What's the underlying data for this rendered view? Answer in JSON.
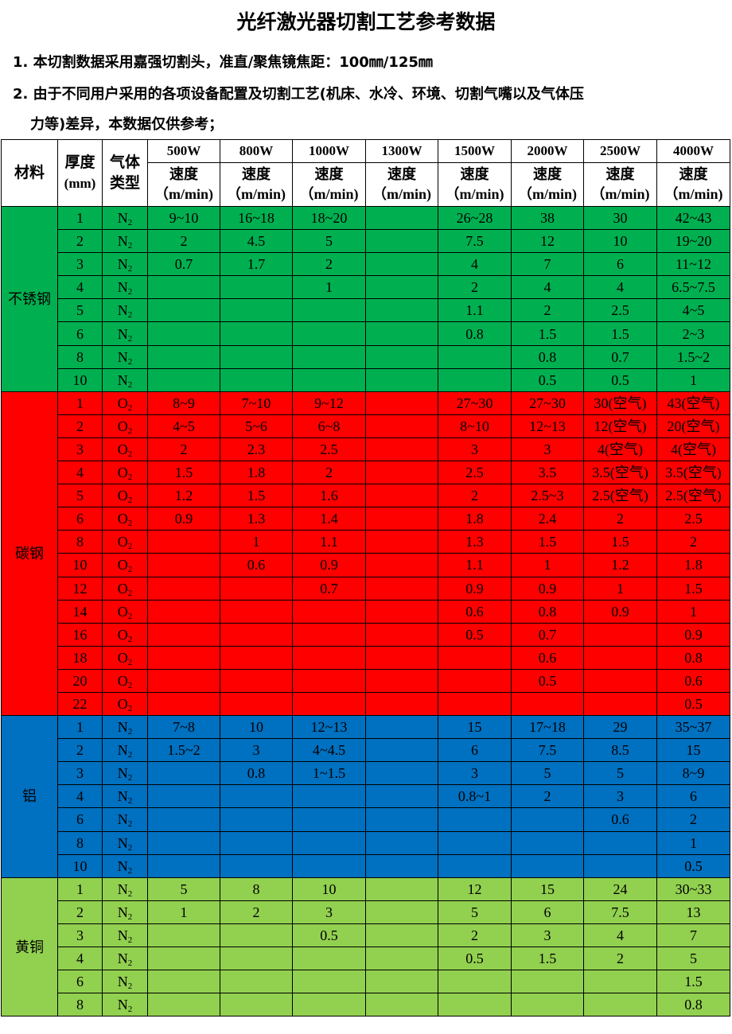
{
  "title": "光纤激光器切割工艺参考数据",
  "notes": [
    "1. 本切割数据采用嘉强切割头，准直/聚焦镜焦距：100㎜/125㎜",
    "2. 由于不同用户采用的各项设备配置及切割工艺(机床、水冷、环境、切割气嘴以及气体压",
    "力等)差异，本数据仅供参考；"
  ],
  "header": {
    "material": "材料",
    "thickness": "厚度",
    "thickness_unit": "(mm)",
    "gas": "气体",
    "gas2": "类型",
    "speed": "速度",
    "speed_unit": "（m/min)",
    "powers": [
      "500W",
      "800W",
      "1000W",
      "1300W",
      "1500W",
      "2000W",
      "2500W",
      "4000W"
    ]
  },
  "colors": {
    "stainless": "#00b050",
    "carbon": "#ff0000",
    "aluminum": "#0070c0",
    "brass": "#92d050"
  },
  "groups": [
    {
      "material": "不锈钢",
      "color": "#00b050",
      "rows": [
        [
          "1",
          "N2",
          "9~10",
          "16~18",
          "18~20",
          "",
          "26~28",
          "38",
          "30",
          "42~43"
        ],
        [
          "2",
          "N2",
          "2",
          "4.5",
          "5",
          "",
          "7.5",
          "12",
          "10",
          "19~20"
        ],
        [
          "3",
          "N2",
          "0.7",
          "1.7",
          "2",
          "",
          "4",
          "7",
          "6",
          "11~12"
        ],
        [
          "4",
          "N2",
          "",
          "",
          "1",
          "",
          "2",
          "4",
          "4",
          "6.5~7.5"
        ],
        [
          "5",
          "N2",
          "",
          "",
          "",
          "",
          "1.1",
          "2",
          "2.5",
          "4~5"
        ],
        [
          "6",
          "N2",
          "",
          "",
          "",
          "",
          "0.8",
          "1.5",
          "1.5",
          "2~3"
        ],
        [
          "8",
          "N2",
          "",
          "",
          "",
          "",
          "",
          "0.8",
          "0.7",
          "1.5~2"
        ],
        [
          "10",
          "N2",
          "",
          "",
          "",
          "",
          "",
          "0.5",
          "0.5",
          "1"
        ]
      ]
    },
    {
      "material": "碳钢",
      "color": "#ff0000",
      "rows": [
        [
          "1",
          "O2",
          "8~9",
          "7~10",
          "9~12",
          "",
          "27~30",
          "27~30",
          "30(空气)",
          "43(空气)"
        ],
        [
          "2",
          "O2",
          "4~5",
          "5~6",
          "6~8",
          "",
          "8~10",
          "12~13",
          "12(空气)",
          "20(空气)"
        ],
        [
          "3",
          "O2",
          "2",
          "2.3",
          "2.5",
          "",
          "3",
          "3",
          "4(空气)",
          "4(空气)"
        ],
        [
          "4",
          "O2",
          "1.5",
          "1.8",
          "2",
          "",
          "2.5",
          "3.5",
          "3.5(空气)",
          "3.5(空气)"
        ],
        [
          "5",
          "O2",
          "1.2",
          "1.5",
          "1.6",
          "",
          "2",
          "2.5~3",
          "2.5(空气)",
          "2.5(空气)"
        ],
        [
          "6",
          "O2",
          "0.9",
          "1.3",
          "1.4",
          "",
          "1.8",
          "2.4",
          "2",
          "2.5"
        ],
        [
          "8",
          "O2",
          "",
          "1",
          "1.1",
          "",
          "1.3",
          "1.5",
          "1.5",
          "2"
        ],
        [
          "10",
          "O2",
          "",
          "0.6",
          "0.9",
          "",
          "1.1",
          "1",
          "1.2",
          "1.8"
        ],
        [
          "12",
          "O2",
          "",
          "",
          "0.7",
          "",
          "0.9",
          "0.9",
          "1",
          "1.5"
        ],
        [
          "14",
          "O2",
          "",
          "",
          "",
          "",
          "0.6",
          "0.8",
          "0.9",
          "1"
        ],
        [
          "16",
          "O2",
          "",
          "",
          "",
          "",
          "0.5",
          "0.7",
          "",
          "0.9"
        ],
        [
          "18",
          "O2",
          "",
          "",
          "",
          "",
          "",
          "0.6",
          "",
          "0.8"
        ],
        [
          "20",
          "O2",
          "",
          "",
          "",
          "",
          "",
          "0.5",
          "",
          "0.6"
        ],
        [
          "22",
          "O2",
          "",
          "",
          "",
          "",
          "",
          "",
          "",
          "0.5"
        ]
      ]
    },
    {
      "material": "铝",
      "color": "#0070c0",
      "rows": [
        [
          "1",
          "N2",
          "7~8",
          "10",
          "12~13",
          "",
          "15",
          "17~18",
          "29",
          "35~37"
        ],
        [
          "2",
          "N2",
          "1.5~2",
          "3",
          "4~4.5",
          "",
          "6",
          "7.5",
          "8.5",
          "15"
        ],
        [
          "3",
          "N2",
          "",
          "0.8",
          "1~1.5",
          "",
          "3",
          "5",
          "5",
          "8~9"
        ],
        [
          "4",
          "N2",
          "",
          "",
          "",
          "",
          "0.8~1",
          "2",
          "3",
          "6"
        ],
        [
          "6",
          "N2",
          "",
          "",
          "",
          "",
          "",
          "",
          "0.6",
          "2"
        ],
        [
          "8",
          "N2",
          "",
          "",
          "",
          "",
          "",
          "",
          "",
          "1"
        ],
        [
          "10",
          "N2",
          "",
          "",
          "",
          "",
          "",
          "",
          "",
          "0.5"
        ]
      ]
    },
    {
      "material": "黄铜",
      "color": "#92d050",
      "rows": [
        [
          "1",
          "N2",
          "5",
          "8",
          "10",
          "",
          "12",
          "15",
          "24",
          "30~33"
        ],
        [
          "2",
          "N2",
          "1",
          "2",
          "3",
          "",
          "5",
          "6",
          "7.5",
          "13"
        ],
        [
          "3",
          "N2",
          "",
          "",
          "0.5",
          "",
          "2",
          "3",
          "4",
          "7"
        ],
        [
          "4",
          "N2",
          "",
          "",
          "",
          "",
          "0.5",
          "1.5",
          "2",
          "5"
        ],
        [
          "6",
          "N2",
          "",
          "",
          "",
          "",
          "",
          "",
          "",
          "1.5"
        ],
        [
          "8",
          "N2",
          "",
          "",
          "",
          "",
          "",
          "",
          "",
          "0.8"
        ]
      ]
    }
  ]
}
